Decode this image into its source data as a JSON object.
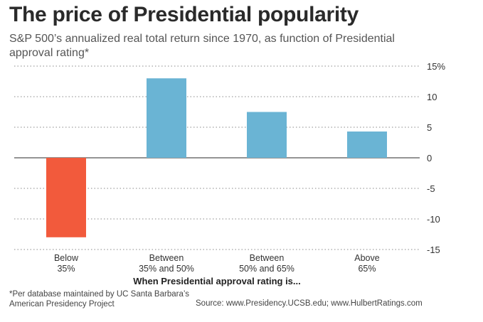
{
  "title": "The price of Presidential popularity",
  "subtitle": "S&P 500’s annualized real total return since 1970, as function of Presidential approval rating*",
  "footnote": "*Per database maintained by UC Santa Barbara’s American Presidency Project",
  "source": "Source: www.Presidency.UCSB.edu; www.HulbertRatings.com",
  "colors": {
    "positive": "#6ab4d4",
    "negative": "#f25a3c",
    "grid": "#888888",
    "zero": "#555555"
  },
  "chart_data": {
    "type": "bar",
    "categories": [
      [
        "Below",
        "35%"
      ],
      [
        "Between",
        "35% and 50%"
      ],
      [
        "Between",
        "50% and 65%"
      ],
      [
        "Above",
        "65%"
      ]
    ],
    "values": [
      -13,
      13,
      7.5,
      4.3
    ],
    "xlabel": "When Presidential approval rating is...",
    "ylabel": "",
    "ylim": [
      -15,
      15
    ],
    "yticks": [
      15,
      10,
      5,
      0,
      -5,
      -10,
      -15
    ],
    "ytick_labels": [
      "15%",
      "10",
      "5",
      "0",
      "-5",
      "-10",
      "-15"
    ],
    "grid": true,
    "axis_side": "right"
  }
}
